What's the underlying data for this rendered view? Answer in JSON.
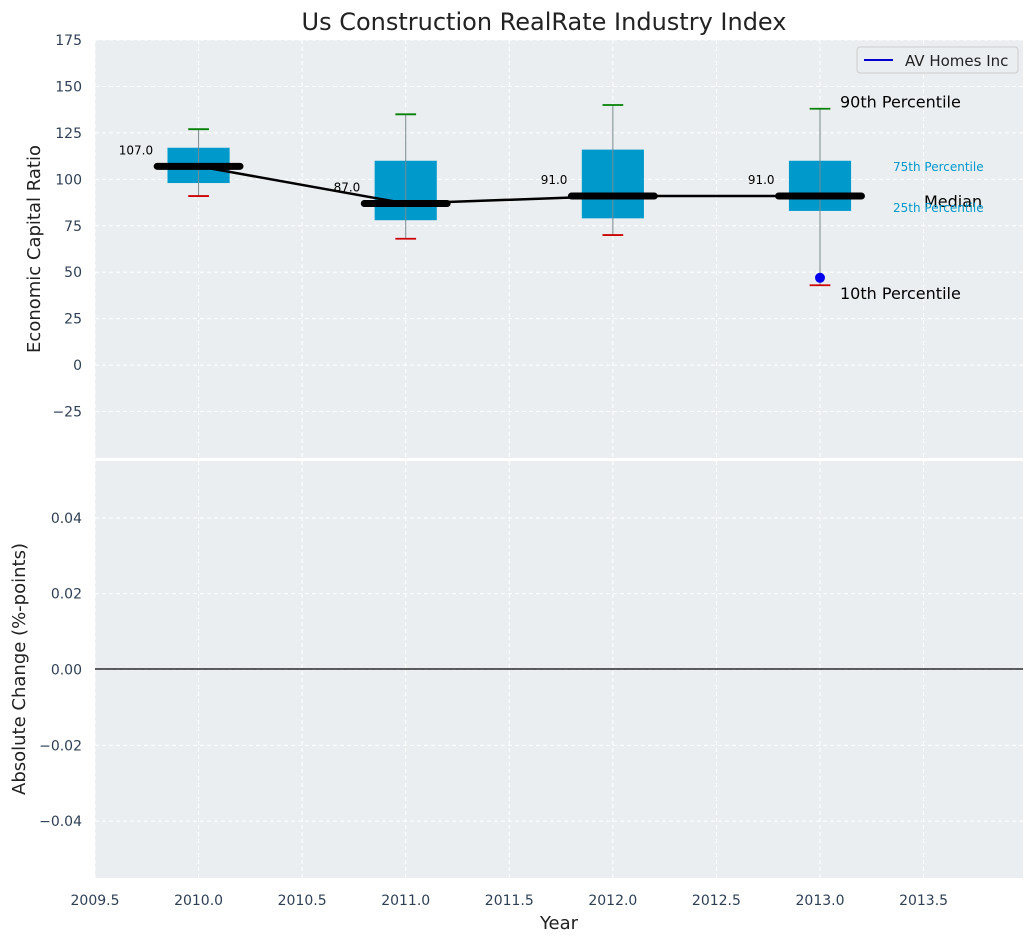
{
  "chart_data": [
    {
      "type": "box",
      "title": "Us Construction RealRate Industry Index",
      "ylabel": "Economic Capital Ratio",
      "ylim": [
        -50,
        175
      ],
      "yticks": [
        -25,
        0,
        25,
        50,
        75,
        100,
        125,
        150,
        175
      ],
      "ytick_labels": [
        "−25",
        "0",
        "25",
        "50",
        "75",
        "100",
        "125",
        "150",
        "175"
      ],
      "grid": true,
      "legend": {
        "position": "top-right",
        "entries": [
          {
            "label": "AV Homes Inc",
            "color": "#0000cc"
          }
        ]
      },
      "boxes": [
        {
          "x": 2010,
          "p10": 91,
          "p25": 98,
          "median": 107,
          "p75": 117,
          "p90": 127
        },
        {
          "x": 2011,
          "p10": 68,
          "p25": 78,
          "median": 87,
          "p75": 110,
          "p90": 135
        },
        {
          "x": 2012,
          "p10": 70,
          "p25": 79,
          "median": 91,
          "p75": 116,
          "p90": 140
        },
        {
          "x": 2013,
          "p10": 43,
          "p25": 83,
          "median": 91,
          "p75": 110,
          "p90": 138
        }
      ],
      "median_labels": [
        "107.0",
        "87.0",
        "91.0",
        "91.0"
      ],
      "company_series": {
        "name": "AV Homes Inc",
        "x": [
          2013
        ],
        "y": [
          47
        ]
      },
      "annotations": {
        "p90": "90th Percentile",
        "p75": "75th Percentile",
        "median": "Median",
        "p25": "25th Percentile",
        "p10": "10th Percentile"
      }
    },
    {
      "type": "line",
      "xlabel": "Year",
      "ylabel": "Absolute Change (%-points)",
      "xlim": [
        2009.5,
        2013.98
      ],
      "ylim": [
        -0.055,
        0.055
      ],
      "xticks": [
        2009.5,
        2010.0,
        2010.5,
        2011.0,
        2011.5,
        2012.0,
        2012.5,
        2013.0,
        2013.5
      ],
      "xtick_labels": [
        "2009.5",
        "2010.0",
        "2010.5",
        "2011.0",
        "2011.5",
        "2012.0",
        "2012.5",
        "2013.0",
        "2013.5"
      ],
      "yticks": [
        -0.04,
        -0.02,
        0.0,
        0.02,
        0.04
      ],
      "ytick_labels": [
        "−0.04",
        "−0.02",
        "0.00",
        "0.02",
        "0.04"
      ],
      "reference_line_y": 0,
      "grid": true
    }
  ],
  "colors": {
    "plot_bg": "#eaeef0",
    "grid": "#ffffff",
    "box": "#0099cc",
    "median": "#000000",
    "p90_cap": "#008000",
    "p10_cap": "#cc0000",
    "company_point": "#0000ee",
    "tick_text": "#2e3f55",
    "annot_small": "#0099cc"
  }
}
